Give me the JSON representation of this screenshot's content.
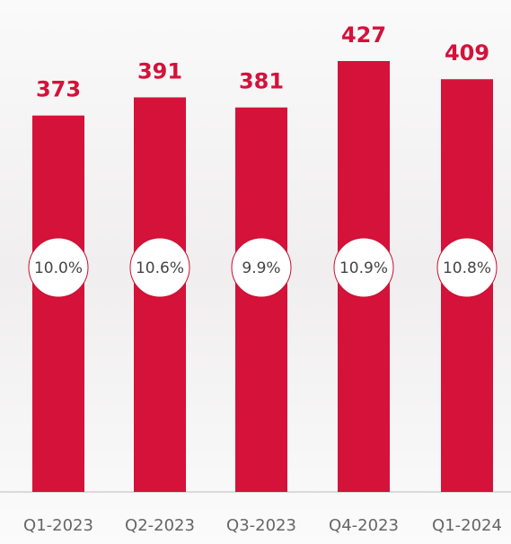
{
  "chart_data": {
    "type": "bar",
    "categories": [
      "Q1-2023",
      "Q2-2023",
      "Q3-2023",
      "Q4-2023",
      "Q1-2024"
    ],
    "values": [
      373,
      391,
      381,
      427,
      409
    ],
    "color": "#d4123a",
    "circle_labels": {
      "values": [
        10.0,
        10.6,
        9.9,
        10.9,
        10.8
      ],
      "value_labels": [
        "10.0%",
        "10.6%",
        "9.9%",
        "10.9%",
        "10.8%"
      ]
    }
  }
}
